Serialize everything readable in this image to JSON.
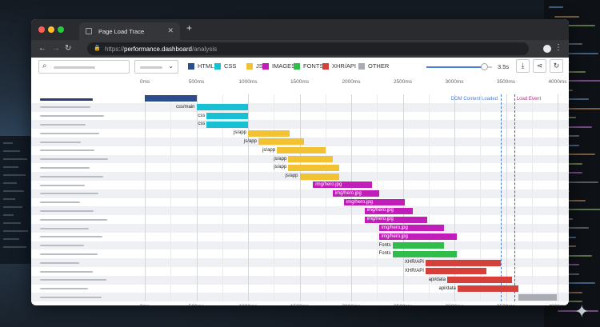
{
  "browser": {
    "tab_title": "Page Load Trace",
    "url_scheme": "https://",
    "url_host": "performance.dashboard",
    "url_path": "/analysis"
  },
  "toolbar": {
    "search_icon": "search-icon",
    "dropdown_icon": "chevron-down-icon",
    "zoom_value": "3.5s",
    "zoom_fraction": 0.875,
    "buttons": [
      "download-icon",
      "share-icon",
      "refresh-icon"
    ]
  },
  "legend": [
    {
      "label": "HTML",
      "color": "#2c4d8c"
    },
    {
      "label": "CSS",
      "color": "#19bfd3"
    },
    {
      "label": "JS",
      "color": "#f1c232"
    },
    {
      "label": "IMAGES",
      "color": "#c21cb9"
    },
    {
      "label": "FONTS",
      "color": "#2fbd4b"
    },
    {
      "label": "XHR/API",
      "color": "#d6403a"
    },
    {
      "label": "OTHER",
      "color": "#a9adb3"
    }
  ],
  "chart_data": {
    "type": "waterfall",
    "x_ticks": [
      "0ms",
      "500ms",
      "1000ms",
      "1500ms",
      "2000ms",
      "2500ms",
      "3000ms",
      "3500ms",
      "4000ms"
    ],
    "x_range": [
      0,
      4000
    ],
    "events": [
      {
        "label": "DOM Content Loaded",
        "at": 3450,
        "color": "#4a7fd6"
      },
      {
        "label": "Load Event",
        "at": 3580,
        "color": "#b0328c"
      }
    ],
    "rows": [
      {
        "type": "HTML",
        "start": 0,
        "end": 500,
        "label": ""
      },
      {
        "type": "CSS",
        "start": 500,
        "end": 1000,
        "label": "css/main"
      },
      {
        "type": "CSS",
        "start": 600,
        "end": 1000,
        "label": "css"
      },
      {
        "type": "CSS",
        "start": 600,
        "end": 1000,
        "label": "css"
      },
      {
        "type": "JS",
        "start": 1000,
        "end": 1400,
        "label": "js/app"
      },
      {
        "type": "JS",
        "start": 1100,
        "end": 1540,
        "label": "js/app"
      },
      {
        "type": "JS",
        "start": 1280,
        "end": 1750,
        "label": "js/app"
      },
      {
        "type": "JS",
        "start": 1390,
        "end": 1820,
        "label": "js/app"
      },
      {
        "type": "JS",
        "start": 1390,
        "end": 1880,
        "label": "js/app"
      },
      {
        "type": "JS",
        "start": 1500,
        "end": 1880,
        "label": "js/app"
      },
      {
        "type": "IMAGES",
        "start": 1630,
        "end": 2200,
        "label": "img/hero.jpg",
        "label_inside": true
      },
      {
        "type": "IMAGES",
        "start": 1820,
        "end": 2270,
        "label": "img/hero.jpg",
        "label_inside": true
      },
      {
        "type": "IMAGES",
        "start": 1930,
        "end": 2520,
        "label": "img/hero.jpg",
        "label_inside": true
      },
      {
        "type": "IMAGES",
        "start": 2130,
        "end": 2600,
        "label": "img/hero.jpg",
        "label_inside": true
      },
      {
        "type": "IMAGES",
        "start": 2130,
        "end": 2740,
        "label": "img/hero.jpg",
        "label_inside": true
      },
      {
        "type": "IMAGES",
        "start": 2270,
        "end": 2900,
        "label": "img/hero.jpg",
        "label_inside": true
      },
      {
        "type": "IMAGES",
        "start": 2270,
        "end": 3020,
        "label": "img/hero.jpg",
        "label_inside": true
      },
      {
        "type": "FONTS",
        "start": 2400,
        "end": 2900,
        "label": "Fonts"
      },
      {
        "type": "FONTS",
        "start": 2400,
        "end": 3020,
        "label": "Fonts"
      },
      {
        "type": "XHR/API",
        "start": 2720,
        "end": 3450,
        "label": "XHR/API"
      },
      {
        "type": "XHR/API",
        "start": 2720,
        "end": 3310,
        "label": "XHR/API"
      },
      {
        "type": "XHR/API",
        "start": 2930,
        "end": 3560,
        "label": "api/data"
      },
      {
        "type": "XHR/API",
        "start": 3030,
        "end": 3620,
        "label": "api/data"
      },
      {
        "type": "OTHER",
        "start": 3620,
        "end": 3990,
        "label": ""
      }
    ]
  }
}
